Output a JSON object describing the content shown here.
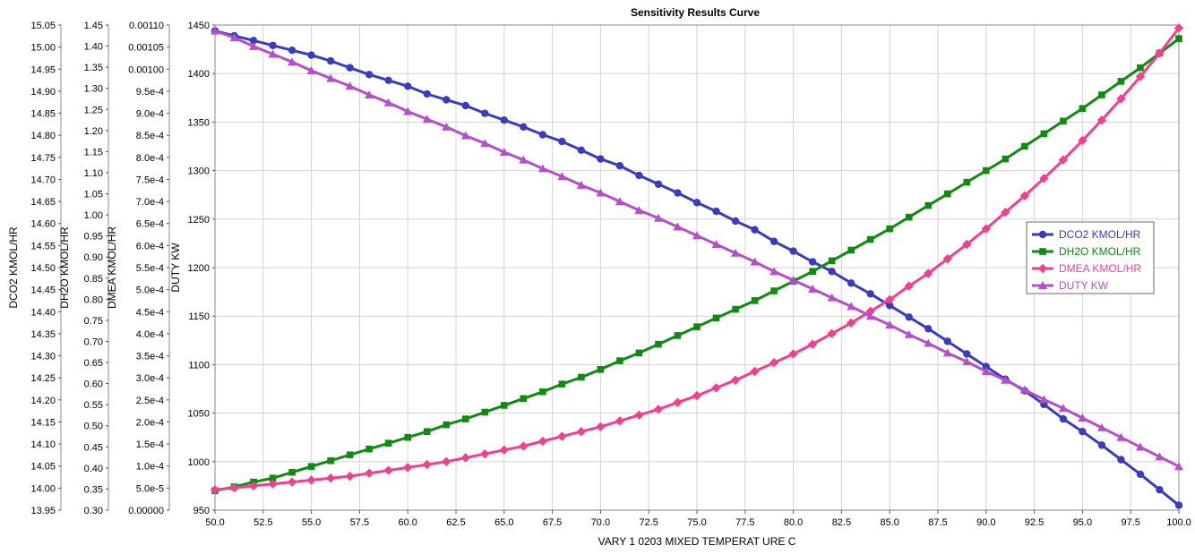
{
  "chart_data": {
    "type": "line",
    "title": "Sensitivity Results Curve",
    "xlabel": "VARY   1 0203 MIXED TEMPERAT URE C",
    "xlim": [
      50,
      100
    ],
    "x_ticks": [
      "50.0",
      "52.5",
      "55.0",
      "57.5",
      "60.0",
      "62.5",
      "65.0",
      "67.5",
      "70.0",
      "72.5",
      "75.0",
      "77.5",
      "80.0",
      "82.5",
      "85.0",
      "87.5",
      "90.0",
      "92.5",
      "95.0",
      "97.5",
      "100.0"
    ],
    "grid": true,
    "legend_position": "right",
    "axes": [
      {
        "id": "dco2",
        "label": "DCO2 KMOL/HR",
        "ylim": [
          13.95,
          15.05
        ],
        "ticks": [
          "13.95",
          "14.00",
          "14.05",
          "14.10",
          "14.15",
          "14.20",
          "14.25",
          "14.30",
          "14.35",
          "14.40",
          "14.45",
          "14.50",
          "14.55",
          "14.60",
          "14.65",
          "14.70",
          "14.75",
          "14.80",
          "14.85",
          "14.90",
          "14.95",
          "15.00",
          "15.05"
        ]
      },
      {
        "id": "dh2o",
        "label": "DH2O KMOL/HR",
        "ylim": [
          0.3,
          1.45
        ],
        "ticks": [
          "0.30",
          "0.35",
          "0.40",
          "0.45",
          "0.50",
          "0.55",
          "0.60",
          "0.65",
          "0.70",
          "0.75",
          "0.80",
          "0.85",
          "0.90",
          "0.95",
          "1.00",
          "1.05",
          "1.10",
          "1.15",
          "1.20",
          "1.25",
          "1.30",
          "1.35",
          "1.40",
          "1.45"
        ]
      },
      {
        "id": "dmea",
        "label": "DMEA KMOL/HR",
        "ylim": [
          0,
          0.0011
        ],
        "ticks": [
          "0.00000",
          "5.0e-5",
          "1.0e-4",
          "1.5e-4",
          "2.0e-4",
          "2.5e-4",
          "3.0e-4",
          "3.5e-4",
          "4.0e-4",
          "4.5e-4",
          "5.0e-4",
          "5.5e-4",
          "6.0e-4",
          "6.5e-4",
          "7.0e-4",
          "7.5e-4",
          "8.0e-4",
          "8.5e-4",
          "9.0e-4",
          "9.5e-4",
          "0.00100",
          "0.00105",
          "0.00110"
        ]
      },
      {
        "id": "duty",
        "label": "DUTY KW",
        "ylim": [
          950,
          1450
        ],
        "ticks": [
          "950",
          "1000",
          "1050",
          "1100",
          "1150",
          "1200",
          "1250",
          "1300",
          "1350",
          "1400",
          "1450"
        ]
      }
    ],
    "series": [
      {
        "name": "DCO2 KMOL/HR",
        "axis": "duty",
        "color": "#3b3bbb",
        "marker": "circle",
        "x": [
          50,
          51,
          52,
          53,
          54,
          55,
          56,
          57,
          58,
          59,
          60,
          61,
          62,
          63,
          64,
          65,
          66,
          67,
          68,
          69,
          70,
          71,
          72,
          73,
          74,
          75,
          76,
          77,
          78,
          79,
          80,
          81,
          82,
          83,
          84,
          85,
          86,
          87,
          88,
          89,
          90,
          91,
          92,
          93,
          94,
          95,
          96,
          97,
          98,
          99,
          100
        ],
        "y": [
          1444,
          1439,
          1434,
          1429,
          1424,
          1419,
          1413,
          1406,
          1399,
          1393,
          1387,
          1379,
          1373,
          1367,
          1359,
          1352,
          1345,
          1337,
          1330,
          1321,
          1312,
          1305,
          1295,
          1286,
          1277,
          1267,
          1258,
          1248,
          1239,
          1227,
          1217,
          1206,
          1196,
          1184,
          1173,
          1161,
          1149,
          1137,
          1124,
          1111,
          1098,
          1085,
          1073,
          1059,
          1044,
          1031,
          1017,
          1002,
          987,
          971,
          955
        ]
      },
      {
        "name": "DH2O KMOL/HR",
        "axis": "duty",
        "color": "#108a10",
        "marker": "square",
        "x": [
          50,
          51,
          52,
          53,
          54,
          55,
          56,
          57,
          58,
          59,
          60,
          61,
          62,
          63,
          64,
          65,
          66,
          67,
          68,
          69,
          70,
          71,
          72,
          73,
          74,
          75,
          76,
          77,
          78,
          79,
          80,
          81,
          82,
          83,
          84,
          85,
          86,
          87,
          88,
          89,
          90,
          91,
          92,
          93,
          94,
          95,
          96,
          97,
          98,
          99,
          100
        ],
        "y": [
          970,
          974,
          979,
          983,
          989,
          995,
          1001,
          1007,
          1013,
          1019,
          1025,
          1031,
          1038,
          1044,
          1051,
          1058,
          1065,
          1072,
          1080,
          1087,
          1095,
          1104,
          1112,
          1121,
          1130,
          1139,
          1148,
          1157,
          1166,
          1176,
          1186,
          1196,
          1207,
          1218,
          1229,
          1240,
          1252,
          1264,
          1276,
          1288,
          1300,
          1312,
          1325,
          1338,
          1351,
          1364,
          1378,
          1392,
          1406,
          1421,
          1436
        ]
      },
      {
        "name": "DMEA KMOL/HR",
        "axis": "duty",
        "color": "#f0418f",
        "marker": "diamond",
        "x": [
          50,
          51,
          52,
          53,
          54,
          55,
          56,
          57,
          58,
          59,
          60,
          61,
          62,
          63,
          64,
          65,
          66,
          67,
          68,
          69,
          70,
          71,
          72,
          73,
          74,
          75,
          76,
          77,
          78,
          79,
          80,
          81,
          82,
          83,
          84,
          85,
          86,
          87,
          88,
          89,
          90,
          91,
          92,
          93,
          94,
          95,
          96,
          97,
          98,
          99,
          100
        ],
        "y": [
          971,
          973,
          975,
          977,
          979,
          981,
          983,
          985,
          988,
          991,
          994,
          997,
          1000,
          1004,
          1008,
          1012,
          1016,
          1021,
          1026,
          1031,
          1036,
          1042,
          1048,
          1054,
          1061,
          1068,
          1076,
          1084,
          1093,
          1102,
          1111,
          1121,
          1132,
          1143,
          1155,
          1167,
          1181,
          1194,
          1209,
          1224,
          1240,
          1257,
          1274,
          1292,
          1311,
          1331,
          1352,
          1374,
          1397,
          1421,
          1447
        ]
      },
      {
        "name": "DUTY KW",
        "axis": "duty",
        "color": "#b44fc8",
        "marker": "triangle",
        "x": [
          50,
          51,
          52,
          53,
          54,
          55,
          56,
          57,
          58,
          59,
          60,
          61,
          62,
          63,
          64,
          65,
          66,
          67,
          68,
          69,
          70,
          71,
          72,
          73,
          74,
          75,
          76,
          77,
          78,
          79,
          80,
          81,
          82,
          83,
          84,
          85,
          86,
          87,
          88,
          89,
          90,
          91,
          92,
          93,
          94,
          95,
          96,
          97,
          98,
          99,
          100
        ],
        "y": [
          1444,
          1437,
          1428,
          1420,
          1412,
          1403,
          1395,
          1387,
          1378,
          1370,
          1361,
          1353,
          1345,
          1336,
          1328,
          1319,
          1311,
          1302,
          1294,
          1285,
          1277,
          1268,
          1259,
          1251,
          1242,
          1233,
          1224,
          1215,
          1206,
          1196,
          1187,
          1178,
          1169,
          1160,
          1150,
          1141,
          1131,
          1122,
          1112,
          1103,
          1093,
          1084,
          1074,
          1064,
          1055,
          1045,
          1035,
          1025,
          1015,
          1005,
          995
        ]
      }
    ]
  }
}
